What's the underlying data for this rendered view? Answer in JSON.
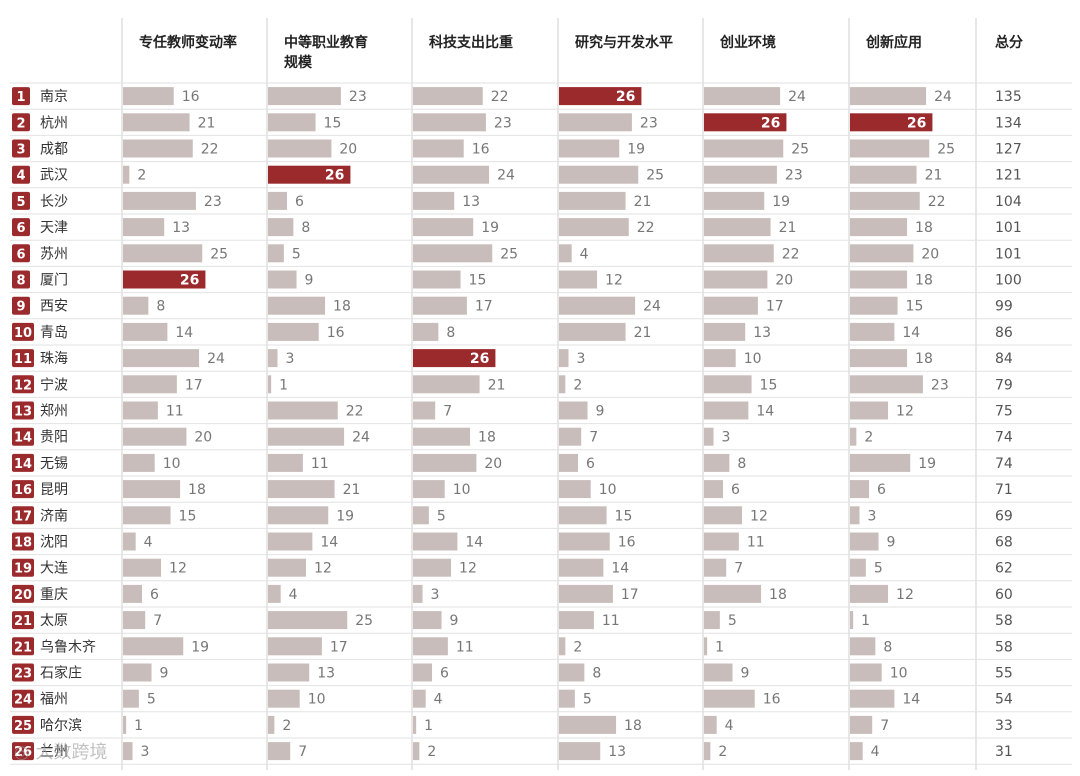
{
  "chart_data": {
    "type": "table",
    "columns": [
      "专任教师变动率",
      "中等职业教育规模",
      "科技支出比重",
      "研究与开发水平",
      "创业环境",
      "创新应用"
    ],
    "column_lines": [
      [
        "专任教师变动率"
      ],
      [
        "中等职业教育",
        "规模"
      ],
      [
        "科技支出比重"
      ],
      [
        "研究与开发水平"
      ],
      [
        "创业环境"
      ],
      [
        "创新应用"
      ]
    ],
    "total_label": "总分",
    "max_value": 26,
    "colors": {
      "bar": "#c8bdbb",
      "highlight": "#9b2a2d",
      "rank_badge": "#9b2a2d",
      "grid": "#cfcfcf"
    },
    "rows": [
      {
        "rank": "1",
        "city": "南京",
        "values": [
          16,
          23,
          22,
          26,
          24,
          24
        ],
        "total": "135"
      },
      {
        "rank": "2",
        "city": "杭州",
        "values": [
          21,
          15,
          23,
          23,
          26,
          26
        ],
        "total": "134"
      },
      {
        "rank": "3",
        "city": "成都",
        "values": [
          22,
          20,
          16,
          19,
          25,
          25
        ],
        "total": "127"
      },
      {
        "rank": "4",
        "city": "武汉",
        "values": [
          2,
          26,
          24,
          25,
          23,
          21
        ],
        "total": "121"
      },
      {
        "rank": "5",
        "city": "长沙",
        "values": [
          23,
          6,
          13,
          21,
          19,
          22
        ],
        "total": "104"
      },
      {
        "rank": "6",
        "city": "天津",
        "values": [
          13,
          8,
          19,
          22,
          21,
          18
        ],
        "total": "101"
      },
      {
        "rank": "6",
        "city": "苏州",
        "values": [
          25,
          5,
          25,
          4,
          22,
          20
        ],
        "total": "101"
      },
      {
        "rank": "8",
        "city": "厦门",
        "values": [
          26,
          9,
          15,
          12,
          20,
          18
        ],
        "total": "100"
      },
      {
        "rank": "9",
        "city": "西安",
        "values": [
          8,
          18,
          17,
          24,
          17,
          15
        ],
        "total": "99"
      },
      {
        "rank": "10",
        "city": "青岛",
        "values": [
          14,
          16,
          8,
          21,
          13,
          14
        ],
        "total": "86"
      },
      {
        "rank": "11",
        "city": "珠海",
        "values": [
          24,
          3,
          26,
          3,
          10,
          18
        ],
        "total": "84"
      },
      {
        "rank": "12",
        "city": "宁波",
        "values": [
          17,
          1,
          21,
          2,
          15,
          23
        ],
        "total": "79"
      },
      {
        "rank": "13",
        "city": "郑州",
        "values": [
          11,
          22,
          7,
          9,
          14,
          12
        ],
        "total": "75"
      },
      {
        "rank": "14",
        "city": "贵阳",
        "values": [
          20,
          24,
          18,
          7,
          3,
          2
        ],
        "total": "74"
      },
      {
        "rank": "14",
        "city": "无锡",
        "values": [
          10,
          11,
          20,
          6,
          8,
          19
        ],
        "total": "74"
      },
      {
        "rank": "16",
        "city": "昆明",
        "values": [
          18,
          21,
          10,
          10,
          6,
          6
        ],
        "total": "71"
      },
      {
        "rank": "17",
        "city": "济南",
        "values": [
          15,
          19,
          5,
          15,
          12,
          3
        ],
        "total": "69"
      },
      {
        "rank": "18",
        "city": "沈阳",
        "values": [
          4,
          14,
          14,
          16,
          11,
          9
        ],
        "total": "68"
      },
      {
        "rank": "19",
        "city": "大连",
        "values": [
          12,
          12,
          12,
          14,
          7,
          5
        ],
        "total": "62"
      },
      {
        "rank": "20",
        "city": "重庆",
        "values": [
          6,
          4,
          3,
          17,
          18,
          12
        ],
        "total": "60"
      },
      {
        "rank": "21",
        "city": "太原",
        "values": [
          7,
          25,
          9,
          11,
          5,
          1
        ],
        "total": "58"
      },
      {
        "rank": "21",
        "city": "乌鲁木齐",
        "values": [
          19,
          17,
          11,
          2,
          1,
          8
        ],
        "total": "58"
      },
      {
        "rank": "23",
        "city": "石家庄",
        "values": [
          9,
          13,
          6,
          8,
          9,
          10
        ],
        "total": "55"
      },
      {
        "rank": "24",
        "city": "福州",
        "values": [
          5,
          10,
          4,
          5,
          16,
          14
        ],
        "total": "54"
      },
      {
        "rank": "25",
        "city": "哈尔滨",
        "values": [
          1,
          2,
          1,
          18,
          4,
          7
        ],
        "total": "33"
      },
      {
        "rank": "26",
        "city": "兰州",
        "values": [
          3,
          7,
          2,
          13,
          2,
          4
        ],
        "total": "31"
      }
    ]
  },
  "watermark": "大数跨境"
}
